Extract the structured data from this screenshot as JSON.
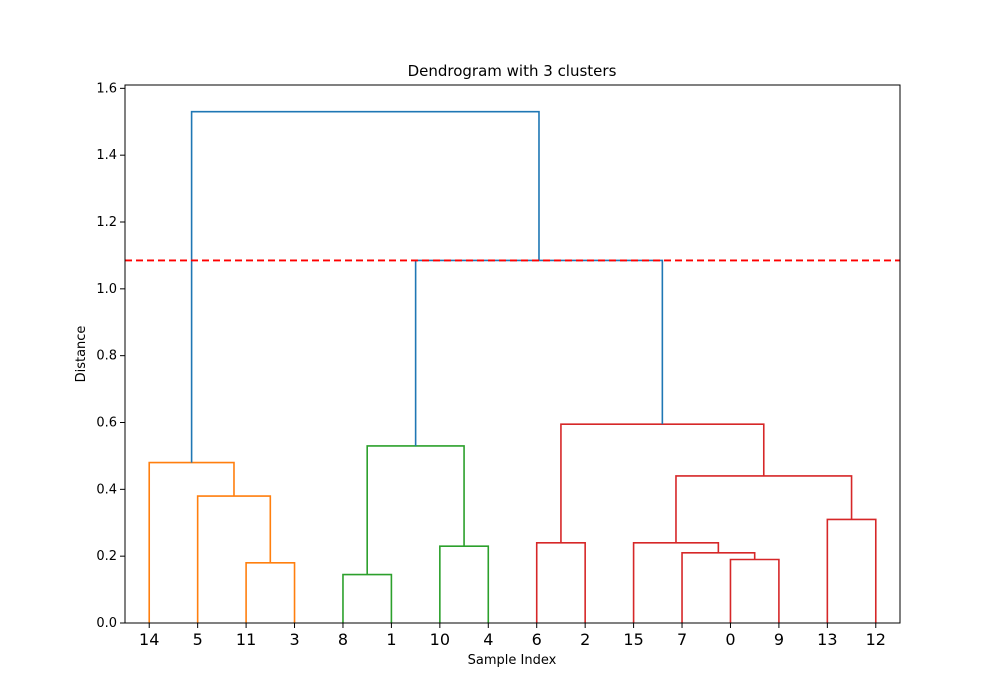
{
  "chart_data": {
    "type": "dendrogram",
    "title": "Dendrogram with 3 clusters",
    "xlabel": "Sample Index",
    "ylabel": "Distance",
    "ylim": [
      0,
      1.61
    ],
    "y_ticks": [
      "0.0",
      "0.2",
      "0.4",
      "0.6",
      "0.8",
      "1.0",
      "1.2",
      "1.4",
      "1.6"
    ],
    "leaf_order": [
      "14",
      "5",
      "11",
      "3",
      "8",
      "1",
      "10",
      "4",
      "6",
      "2",
      "15",
      "7",
      "0",
      "9",
      "13",
      "12"
    ],
    "cut_line": {
      "distance": 1.085,
      "color": "#ff0000",
      "style": "dashed"
    },
    "colors": {
      "cluster_1": "#ff7f0e",
      "cluster_2": "#2ca02c",
      "cluster_3": "#d62728",
      "above_cut": "#1f77b4"
    },
    "merges": [
      {
        "left": "leaf:11",
        "right": "leaf:3",
        "height": 0.18,
        "color": "cluster_1"
      },
      {
        "left": "leaf:5",
        "right": "m0",
        "height": 0.38,
        "color": "cluster_1"
      },
      {
        "left": "leaf:14",
        "right": "m1",
        "height": 0.48,
        "color": "cluster_1"
      },
      {
        "left": "leaf:8",
        "right": "leaf:1",
        "height": 0.145,
        "color": "cluster_2"
      },
      {
        "left": "leaf:10",
        "right": "leaf:4",
        "height": 0.23,
        "color": "cluster_2"
      },
      {
        "left": "m3",
        "right": "m4",
        "height": 0.53,
        "color": "cluster_2"
      },
      {
        "left": "leaf:6",
        "right": "leaf:2",
        "height": 0.24,
        "color": "cluster_3"
      },
      {
        "left": "leaf:0",
        "right": "leaf:9",
        "height": 0.19,
        "color": "cluster_3"
      },
      {
        "left": "leaf:7",
        "right": "m7",
        "height": 0.21,
        "color": "cluster_3"
      },
      {
        "left": "leaf:15",
        "right": "m8",
        "height": 0.24,
        "color": "cluster_3"
      },
      {
        "left": "leaf:13",
        "right": "leaf:12",
        "height": 0.31,
        "color": "cluster_3"
      },
      {
        "left": "m9",
        "right": "m10",
        "height": 0.44,
        "color": "cluster_3"
      },
      {
        "left": "m6",
        "right": "m11",
        "height": 0.595,
        "color": "cluster_3"
      },
      {
        "left": "m5",
        "right": "m12",
        "height": 1.085,
        "color": "above_cut"
      },
      {
        "left": "m2",
        "right": "m13",
        "height": 1.53,
        "color": "above_cut"
      }
    ]
  }
}
